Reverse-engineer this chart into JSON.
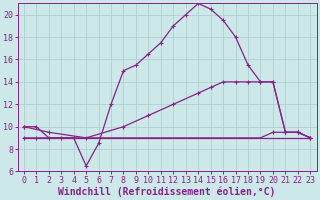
{
  "background_color": "#cce8e8",
  "grid_color": "#aacccc",
  "line_color": "#882288",
  "xlabel": "Windchill (Refroidissement éolien,°C)",
  "xlim": [
    -0.5,
    23.5
  ],
  "ylim": [
    6,
    21
  ],
  "xticks": [
    0,
    1,
    2,
    3,
    4,
    5,
    6,
    7,
    8,
    9,
    10,
    11,
    12,
    13,
    14,
    15,
    16,
    17,
    18,
    19,
    20,
    21,
    22,
    23
  ],
  "yticks": [
    6,
    8,
    10,
    12,
    14,
    16,
    18,
    20
  ],
  "line1_x": [
    0,
    1,
    2,
    3,
    4,
    5,
    6,
    7,
    8,
    9,
    10,
    11,
    12,
    13,
    14,
    15,
    16,
    17,
    18,
    19,
    20,
    21,
    22,
    23
  ],
  "line1_y": [
    10.0,
    10.0,
    9.0,
    9.0,
    9.0,
    6.5,
    8.5,
    12.0,
    15.0,
    15.5,
    16.5,
    17.5,
    19.0,
    20.0,
    21.0,
    20.5,
    19.5,
    18.0,
    15.5,
    14.0,
    14.0,
    9.5,
    9.5,
    9.0
  ],
  "line2_x": [
    0,
    2,
    5,
    8,
    10,
    12,
    14,
    15,
    16,
    17,
    18,
    19,
    20,
    21,
    22,
    23
  ],
  "line2_y": [
    10.0,
    9.5,
    9.0,
    10.0,
    11.0,
    12.0,
    13.0,
    13.5,
    14.0,
    14.0,
    14.0,
    14.0,
    14.0,
    9.5,
    9.5,
    9.0
  ],
  "line3_x": [
    0,
    1,
    2,
    3,
    4,
    5,
    6,
    7,
    8,
    9,
    10,
    11,
    12,
    13,
    14,
    15,
    16,
    17,
    18,
    19,
    20,
    21,
    22,
    23
  ],
  "line3_y": [
    9.0,
    9.0,
    9.0,
    9.0,
    9.0,
    9.0,
    9.0,
    9.0,
    9.0,
    9.0,
    9.0,
    9.0,
    9.0,
    9.0,
    9.0,
    9.0,
    9.0,
    9.0,
    9.0,
    9.0,
    9.5,
    9.5,
    9.5,
    9.0
  ],
  "line4_x": [
    0,
    23
  ],
  "line4_y": [
    9.0,
    9.0
  ],
  "tick_font_size": 6,
  "xlabel_font_size": 7
}
